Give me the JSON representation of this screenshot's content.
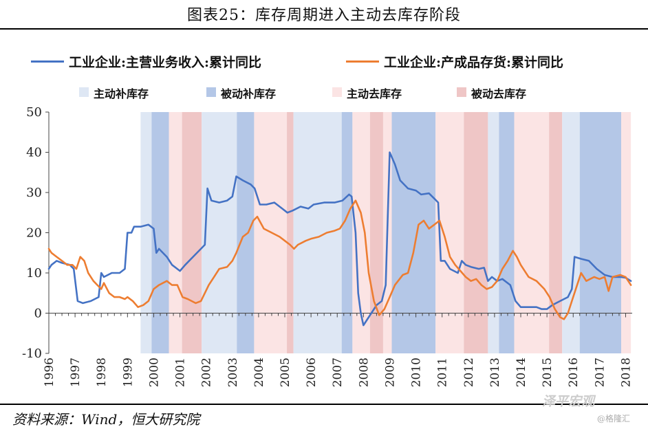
{
  "title": "图表25：库存周期进入主动去库存阶段",
  "source": "资料来源：Wind，恒大研究院",
  "watermark": {
    "brand": "泽平宏观",
    "sub": "@格隆汇"
  },
  "legend": {
    "series": [
      {
        "label": "工业企业:主营业务收入:累计同比",
        "color": "#4472C4"
      },
      {
        "label": "工业企业:产成品存货:累计同比",
        "color": "#ED7D31"
      }
    ],
    "phases": [
      {
        "label": "主动补库存",
        "color": "#DEE7F4"
      },
      {
        "label": "被动补库存",
        "color": "#B4C7E7"
      },
      {
        "label": "主动去库存",
        "color": "#FBE4E4"
      },
      {
        "label": "被动去库存",
        "color": "#EFC6C6"
      }
    ]
  },
  "chart_data": {
    "type": "line",
    "title": "库存周期进入主动去库存阶段",
    "xlim": [
      1996,
      2018.25
    ],
    "ylim": [
      -10,
      50
    ],
    "yticks": [
      -10,
      0,
      10,
      20,
      30,
      40,
      50
    ],
    "xticks": [
      "1996",
      "1997",
      "1998",
      "1999",
      "2000",
      "2001",
      "2002",
      "2003",
      "2004",
      "2005",
      "2006",
      "2007",
      "2008",
      "2009",
      "2010",
      "2011",
      "2012",
      "2013",
      "2014",
      "2015",
      "2016",
      "2017",
      "2018"
    ],
    "phase_bands": [
      {
        "phase": "主动补库存",
        "from": 1999.5,
        "to": 1999.92
      },
      {
        "phase": "被动补库存",
        "from": 1999.92,
        "to": 2000.58
      },
      {
        "phase": "主动去库存",
        "from": 2000.58,
        "to": 2001.08
      },
      {
        "phase": "被动去库存",
        "from": 2001.08,
        "to": 2001.83
      },
      {
        "phase": "主动补库存",
        "from": 2001.83,
        "to": 2003.17
      },
      {
        "phase": "被动补库存",
        "from": 2003.17,
        "to": 2003.83
      },
      {
        "phase": "主动去库存",
        "from": 2003.83,
        "to": 2005.08
      },
      {
        "phase": "被动去库存",
        "from": 2005.08,
        "to": 2005.33
      },
      {
        "phase": "主动补库存",
        "from": 2005.33,
        "to": 2007.17
      },
      {
        "phase": "被动补库存",
        "from": 2007.17,
        "to": 2007.58
      },
      {
        "phase": "主动去库存",
        "from": 2007.58,
        "to": 2008.25
      },
      {
        "phase": "被动去库存",
        "from": 2008.25,
        "to": 2008.75
      },
      {
        "phase": "主动去库存",
        "from": 2008.75,
        "to": 2009.08
      },
      {
        "phase": "被动补库存",
        "from": 2009.08,
        "to": 2010.75
      },
      {
        "phase": "主动去库存",
        "from": 2010.75,
        "to": 2011.83
      },
      {
        "phase": "被动去库存",
        "from": 2011.83,
        "to": 2012.75
      },
      {
        "phase": "主动补库存",
        "from": 2012.75,
        "to": 2013.17
      },
      {
        "phase": "被动补库存",
        "from": 2013.17,
        "to": 2013.75
      },
      {
        "phase": "主动去库存",
        "from": 2013.75,
        "to": 2015.08
      },
      {
        "phase": "被动去库存",
        "from": 2015.08,
        "to": 2015.58
      },
      {
        "phase": "主动补库存",
        "from": 2015.58,
        "to": 2016.25
      },
      {
        "phase": "被动补库存",
        "from": 2016.25,
        "to": 2017.83
      },
      {
        "phase": "主动去库存",
        "from": 2017.83,
        "to": 2018.2
      }
    ],
    "series": [
      {
        "name": "工业企业:主营业务收入:累计同比",
        "color": "#4472C4",
        "points": [
          [
            1996.0,
            11
          ],
          [
            1996.1,
            12
          ],
          [
            1996.3,
            13
          ],
          [
            1996.5,
            12.5
          ],
          [
            1996.8,
            12
          ],
          [
            1996.95,
            11
          ],
          [
            1997.1,
            3
          ],
          [
            1997.3,
            2.5
          ],
          [
            1997.6,
            3
          ],
          [
            1997.9,
            4
          ],
          [
            1998.0,
            10
          ],
          [
            1998.1,
            9
          ],
          [
            1998.4,
            10
          ],
          [
            1998.7,
            10
          ],
          [
            1998.9,
            11
          ],
          [
            1999.0,
            20
          ],
          [
            1999.15,
            20
          ],
          [
            1999.25,
            21.5
          ],
          [
            1999.5,
            21.5
          ],
          [
            1999.8,
            22
          ],
          [
            2000.0,
            21
          ],
          [
            2000.1,
            15
          ],
          [
            2000.2,
            16
          ],
          [
            2000.5,
            14
          ],
          [
            2000.7,
            12
          ],
          [
            2001.0,
            10.5
          ],
          [
            2001.2,
            12
          ],
          [
            2001.5,
            14
          ],
          [
            2001.8,
            16
          ],
          [
            2001.95,
            17
          ],
          [
            2002.05,
            31
          ],
          [
            2002.2,
            28
          ],
          [
            2002.5,
            27.5
          ],
          [
            2002.8,
            28
          ],
          [
            2003.0,
            29
          ],
          [
            2003.15,
            34
          ],
          [
            2003.4,
            33
          ],
          [
            2003.7,
            32
          ],
          [
            2003.85,
            31
          ],
          [
            2004.05,
            27
          ],
          [
            2004.3,
            27
          ],
          [
            2004.6,
            27.5
          ],
          [
            2004.9,
            26
          ],
          [
            2005.1,
            25
          ],
          [
            2005.3,
            25.5
          ],
          [
            2005.6,
            26.5
          ],
          [
            2005.9,
            26
          ],
          [
            2006.1,
            27
          ],
          [
            2006.5,
            27.5
          ],
          [
            2006.9,
            27.5
          ],
          [
            2007.2,
            28
          ],
          [
            2007.45,
            29.5
          ],
          [
            2007.55,
            29
          ],
          [
            2007.7,
            20
          ],
          [
            2007.8,
            5
          ],
          [
            2007.9,
            0
          ],
          [
            2008.0,
            -3
          ],
          [
            2008.2,
            -1
          ],
          [
            2008.5,
            2
          ],
          [
            2008.7,
            3
          ],
          [
            2008.85,
            7
          ],
          [
            2009.0,
            40
          ],
          [
            2009.2,
            37
          ],
          [
            2009.4,
            33
          ],
          [
            2009.7,
            31
          ],
          [
            2010.0,
            30.5
          ],
          [
            2010.2,
            29.5
          ],
          [
            2010.5,
            29.8
          ],
          [
            2010.7,
            28.5
          ],
          [
            2010.85,
            27.5
          ],
          [
            2010.95,
            13
          ],
          [
            2011.1,
            13
          ],
          [
            2011.3,
            11
          ],
          [
            2011.6,
            10
          ],
          [
            2011.75,
            13
          ],
          [
            2011.9,
            12
          ],
          [
            2012.1,
            11.5
          ],
          [
            2012.4,
            11
          ],
          [
            2012.6,
            11.3
          ],
          [
            2012.75,
            8
          ],
          [
            2012.9,
            9
          ],
          [
            2013.1,
            8
          ],
          [
            2013.3,
            8.5
          ],
          [
            2013.6,
            7
          ],
          [
            2013.8,
            3
          ],
          [
            2014.0,
            1.5
          ],
          [
            2014.3,
            1.5
          ],
          [
            2014.6,
            1.5
          ],
          [
            2014.8,
            1
          ],
          [
            2015.0,
            1
          ],
          [
            2015.2,
            2
          ],
          [
            2015.5,
            3
          ],
          [
            2015.8,
            4
          ],
          [
            2015.95,
            6
          ],
          [
            2016.05,
            14
          ],
          [
            2016.3,
            13.5
          ],
          [
            2016.6,
            13
          ],
          [
            2016.9,
            11
          ],
          [
            2017.2,
            9.5
          ],
          [
            2017.5,
            9
          ],
          [
            2017.8,
            9
          ],
          [
            2018.0,
            8.8
          ],
          [
            2018.2,
            8
          ]
        ]
      },
      {
        "name": "工业企业:产成品存货:累计同比",
        "color": "#ED7D31",
        "points": [
          [
            1996.0,
            16
          ],
          [
            1996.1,
            15
          ],
          [
            1996.3,
            14
          ],
          [
            1996.5,
            13
          ],
          [
            1996.7,
            12
          ],
          [
            1996.9,
            12
          ],
          [
            1997.05,
            11
          ],
          [
            1997.2,
            14
          ],
          [
            1997.35,
            13
          ],
          [
            1997.5,
            10
          ],
          [
            1997.7,
            8
          ],
          [
            1997.85,
            7
          ],
          [
            1998.0,
            6
          ],
          [
            1998.1,
            7.5
          ],
          [
            1998.3,
            5
          ],
          [
            1998.5,
            4
          ],
          [
            1998.7,
            4
          ],
          [
            1998.9,
            3.5
          ],
          [
            1999.0,
            4
          ],
          [
            1999.2,
            3
          ],
          [
            1999.4,
            1.5
          ],
          [
            1999.6,
            2
          ],
          [
            1999.8,
            3
          ],
          [
            2000.0,
            6
          ],
          [
            2000.2,
            7
          ],
          [
            2000.5,
            8
          ],
          [
            2000.7,
            7
          ],
          [
            2000.9,
            7
          ],
          [
            2001.1,
            4
          ],
          [
            2001.3,
            3.5
          ],
          [
            2001.6,
            2.5
          ],
          [
            2001.8,
            3
          ],
          [
            2001.95,
            5
          ],
          [
            2002.1,
            7
          ],
          [
            2002.3,
            9
          ],
          [
            2002.5,
            11
          ],
          [
            2002.8,
            11.5
          ],
          [
            2003.0,
            13
          ],
          [
            2003.15,
            15
          ],
          [
            2003.4,
            19
          ],
          [
            2003.6,
            20
          ],
          [
            2003.8,
            23
          ],
          [
            2003.95,
            24
          ],
          [
            2004.2,
            21
          ],
          [
            2004.5,
            20
          ],
          [
            2004.8,
            19
          ],
          [
            2005.0,
            18
          ],
          [
            2005.2,
            17
          ],
          [
            2005.35,
            16
          ],
          [
            2005.5,
            17
          ],
          [
            2005.8,
            18
          ],
          [
            2006.0,
            18.5
          ],
          [
            2006.3,
            19
          ],
          [
            2006.6,
            20
          ],
          [
            2006.9,
            20.5
          ],
          [
            2007.1,
            21
          ],
          [
            2007.3,
            23
          ],
          [
            2007.5,
            26
          ],
          [
            2007.7,
            28
          ],
          [
            2007.9,
            25
          ],
          [
            2008.05,
            20
          ],
          [
            2008.2,
            10
          ],
          [
            2008.4,
            3
          ],
          [
            2008.6,
            -0.5
          ],
          [
            2008.8,
            1
          ],
          [
            2009.0,
            4
          ],
          [
            2009.2,
            7
          ],
          [
            2009.5,
            9.5
          ],
          [
            2009.7,
            10
          ],
          [
            2009.9,
            15
          ],
          [
            2010.1,
            22
          ],
          [
            2010.3,
            23
          ],
          [
            2010.5,
            21
          ],
          [
            2010.7,
            22
          ],
          [
            2010.9,
            23
          ],
          [
            2011.1,
            19
          ],
          [
            2011.3,
            14
          ],
          [
            2011.5,
            12
          ],
          [
            2011.7,
            10.5
          ],
          [
            2011.9,
            9
          ],
          [
            2012.1,
            8
          ],
          [
            2012.3,
            8.5
          ],
          [
            2012.5,
            7
          ],
          [
            2012.7,
            6
          ],
          [
            2012.9,
            6.5
          ],
          [
            2013.1,
            8
          ],
          [
            2013.3,
            11
          ],
          [
            2013.5,
            13
          ],
          [
            2013.7,
            15.5
          ],
          [
            2013.85,
            14
          ],
          [
            2014.0,
            12
          ],
          [
            2014.3,
            9
          ],
          [
            2014.6,
            8
          ],
          [
            2014.9,
            6
          ],
          [
            2015.1,
            4
          ],
          [
            2015.3,
            1
          ],
          [
            2015.5,
            -1
          ],
          [
            2015.65,
            -1.5
          ],
          [
            2015.8,
            0
          ],
          [
            2016.0,
            4
          ],
          [
            2016.2,
            8
          ],
          [
            2016.3,
            10
          ],
          [
            2016.5,
            8
          ],
          [
            2016.8,
            9
          ],
          [
            2017.0,
            8.5
          ],
          [
            2017.2,
            9
          ],
          [
            2017.35,
            5.5
          ],
          [
            2017.5,
            9
          ],
          [
            2017.8,
            9.5
          ],
          [
            2018.0,
            9
          ],
          [
            2018.2,
            7
          ]
        ]
      }
    ]
  }
}
